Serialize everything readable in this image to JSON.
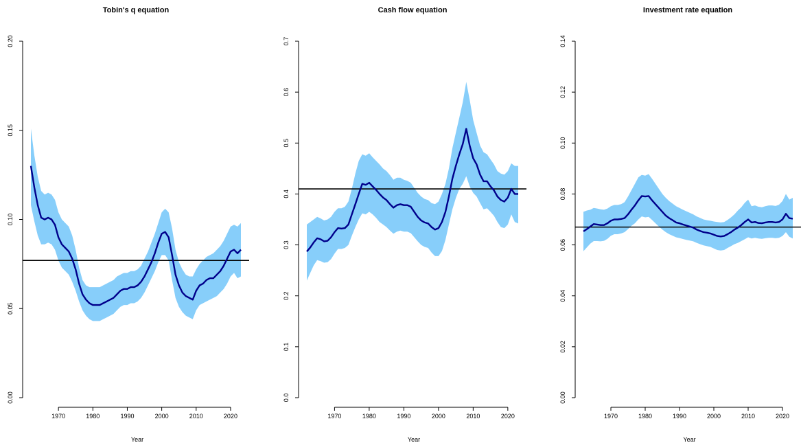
{
  "chart_data": [
    {
      "type": "line",
      "title": "Tobin's q equation",
      "xlabel": "Year",
      "ylabel": "",
      "xlim": [
        1962,
        2023
      ],
      "ylim": [
        0,
        0.2
      ],
      "xticks": [
        "1970",
        "1980",
        "1990",
        "2000",
        "2010",
        "2020"
      ],
      "yticks": [
        "0.00",
        "0.05",
        "0.10",
        "0.15",
        "0.20"
      ],
      "grid": false,
      "band_color": "#87CEFA",
      "line_color": "#00008B",
      "reference_color": "#000000",
      "reference": 0.077,
      "x": [
        1962,
        1963,
        1964,
        1965,
        1966,
        1967,
        1968,
        1969,
        1970,
        1971,
        1972,
        1973,
        1974,
        1975,
        1976,
        1977,
        1978,
        1979,
        1980,
        1981,
        1982,
        1983,
        1984,
        1985,
        1986,
        1987,
        1988,
        1989,
        1990,
        1991,
        1992,
        1993,
        1994,
        1995,
        1996,
        1997,
        1998,
        1999,
        2000,
        2001,
        2002,
        2003,
        2004,
        2005,
        2006,
        2007,
        2008,
        2009,
        2010,
        2011,
        2012,
        2013,
        2014,
        2015,
        2016,
        2017,
        2018,
        2019,
        2020,
        2021,
        2022,
        2023
      ],
      "series": [
        {
          "role": "estimate",
          "values": [
            0.13,
            0.118,
            0.108,
            0.101,
            0.1,
            0.101,
            0.1,
            0.097,
            0.09,
            0.086,
            0.084,
            0.082,
            0.078,
            0.072,
            0.064,
            0.058,
            0.055,
            0.053,
            0.052,
            0.052,
            0.052,
            0.053,
            0.054,
            0.055,
            0.056,
            0.058,
            0.06,
            0.061,
            0.061,
            0.062,
            0.062,
            0.063,
            0.065,
            0.068,
            0.072,
            0.076,
            0.081,
            0.087,
            0.092,
            0.093,
            0.09,
            0.08,
            0.069,
            0.063,
            0.059,
            0.057,
            0.056,
            0.055,
            0.06,
            0.063,
            0.064,
            0.066,
            0.067,
            0.067,
            0.069,
            0.071,
            0.074,
            0.078,
            0.082,
            0.083,
            0.081,
            0.083
          ]
        },
        {
          "role": "upper",
          "values": [
            0.151,
            0.136,
            0.124,
            0.116,
            0.114,
            0.115,
            0.114,
            0.111,
            0.104,
            0.1,
            0.098,
            0.096,
            0.091,
            0.083,
            0.073,
            0.066,
            0.063,
            0.062,
            0.062,
            0.062,
            0.062,
            0.063,
            0.064,
            0.065,
            0.066,
            0.068,
            0.069,
            0.07,
            0.07,
            0.071,
            0.071,
            0.072,
            0.074,
            0.078,
            0.082,
            0.087,
            0.092,
            0.098,
            0.104,
            0.106,
            0.104,
            0.095,
            0.083,
            0.076,
            0.072,
            0.069,
            0.068,
            0.068,
            0.072,
            0.075,
            0.077,
            0.079,
            0.08,
            0.081,
            0.083,
            0.085,
            0.088,
            0.092,
            0.096,
            0.097,
            0.096,
            0.098
          ]
        },
        {
          "role": "lower",
          "values": [
            0.108,
            0.099,
            0.091,
            0.086,
            0.086,
            0.087,
            0.086,
            0.083,
            0.077,
            0.073,
            0.071,
            0.069,
            0.065,
            0.06,
            0.054,
            0.049,
            0.046,
            0.044,
            0.043,
            0.043,
            0.043,
            0.044,
            0.045,
            0.046,
            0.047,
            0.049,
            0.051,
            0.052,
            0.052,
            0.053,
            0.053,
            0.054,
            0.056,
            0.059,
            0.063,
            0.067,
            0.071,
            0.076,
            0.08,
            0.08,
            0.077,
            0.066,
            0.056,
            0.051,
            0.048,
            0.046,
            0.045,
            0.044,
            0.049,
            0.052,
            0.053,
            0.054,
            0.055,
            0.056,
            0.057,
            0.059,
            0.061,
            0.064,
            0.068,
            0.07,
            0.067,
            0.068
          ]
        }
      ]
    },
    {
      "type": "line",
      "title": "Cash flow equation",
      "xlabel": "Year",
      "ylabel": "",
      "xlim": [
        1962,
        2023
      ],
      "ylim": [
        0,
        0.7
      ],
      "xticks": [
        "1970",
        "1980",
        "1990",
        "2000",
        "2010",
        "2020"
      ],
      "yticks": [
        "0.0",
        "0.1",
        "0.2",
        "0.3",
        "0.4",
        "0.5",
        "0.6",
        "0.7"
      ],
      "grid": false,
      "band_color": "#87CEFA",
      "line_color": "#00008B",
      "reference_color": "#000000",
      "reference": 0.41,
      "x": [
        1962,
        1963,
        1964,
        1965,
        1966,
        1967,
        1968,
        1969,
        1970,
        1971,
        1972,
        1973,
        1974,
        1975,
        1976,
        1977,
        1978,
        1979,
        1980,
        1981,
        1982,
        1983,
        1984,
        1985,
        1986,
        1987,
        1988,
        1989,
        1990,
        1991,
        1992,
        1993,
        1994,
        1995,
        1996,
        1997,
        1998,
        1999,
        2000,
        2001,
        2002,
        2003,
        2004,
        2005,
        2006,
        2007,
        2008,
        2009,
        2010,
        2011,
        2012,
        2013,
        2014,
        2015,
        2016,
        2017,
        2018,
        2019,
        2020,
        2021,
        2022,
        2023
      ],
      "series": [
        {
          "role": "estimate",
          "values": [
            0.287,
            0.295,
            0.305,
            0.313,
            0.311,
            0.307,
            0.308,
            0.315,
            0.325,
            0.333,
            0.332,
            0.333,
            0.34,
            0.36,
            0.38,
            0.4,
            0.42,
            0.418,
            0.422,
            0.415,
            0.408,
            0.4,
            0.393,
            0.388,
            0.38,
            0.373,
            0.378,
            0.38,
            0.378,
            0.378,
            0.375,
            0.365,
            0.355,
            0.348,
            0.344,
            0.342,
            0.335,
            0.33,
            0.333,
            0.345,
            0.365,
            0.395,
            0.43,
            0.455,
            0.478,
            0.498,
            0.528,
            0.495,
            0.47,
            0.458,
            0.438,
            0.425,
            0.425,
            0.415,
            0.407,
            0.395,
            0.388,
            0.385,
            0.393,
            0.41,
            0.4,
            0.4
          ]
        },
        {
          "role": "upper",
          "values": [
            0.34,
            0.345,
            0.35,
            0.355,
            0.352,
            0.348,
            0.35,
            0.355,
            0.365,
            0.372,
            0.372,
            0.375,
            0.385,
            0.41,
            0.44,
            0.465,
            0.478,
            0.475,
            0.48,
            0.472,
            0.465,
            0.458,
            0.45,
            0.445,
            0.437,
            0.428,
            0.432,
            0.432,
            0.428,
            0.426,
            0.422,
            0.412,
            0.402,
            0.395,
            0.39,
            0.388,
            0.382,
            0.38,
            0.385,
            0.4,
            0.42,
            0.45,
            0.49,
            0.52,
            0.55,
            0.58,
            0.62,
            0.585,
            0.545,
            0.52,
            0.495,
            0.482,
            0.478,
            0.468,
            0.458,
            0.445,
            0.44,
            0.438,
            0.445,
            0.46,
            0.455,
            0.455
          ]
        },
        {
          "role": "lower",
          "values": [
            0.23,
            0.245,
            0.26,
            0.27,
            0.268,
            0.265,
            0.266,
            0.272,
            0.283,
            0.292,
            0.292,
            0.294,
            0.3,
            0.318,
            0.335,
            0.35,
            0.362,
            0.36,
            0.365,
            0.36,
            0.353,
            0.345,
            0.34,
            0.335,
            0.328,
            0.322,
            0.326,
            0.328,
            0.326,
            0.326,
            0.323,
            0.315,
            0.307,
            0.3,
            0.296,
            0.294,
            0.285,
            0.278,
            0.278,
            0.288,
            0.31,
            0.34,
            0.37,
            0.392,
            0.41,
            0.42,
            0.435,
            0.415,
            0.402,
            0.395,
            0.382,
            0.37,
            0.372,
            0.365,
            0.357,
            0.345,
            0.335,
            0.333,
            0.34,
            0.36,
            0.345,
            0.342
          ]
        }
      ]
    },
    {
      "type": "line",
      "title": "Investment rate equation",
      "xlabel": "Year",
      "ylabel": "",
      "xlim": [
        1962,
        2023
      ],
      "ylim": [
        0,
        0.14
      ],
      "xticks": [
        "1970",
        "1980",
        "1990",
        "2000",
        "2010",
        "2020"
      ],
      "yticks": [
        "0.00",
        "0.02",
        "0.04",
        "0.06",
        "0.08",
        "0.10",
        "0.12",
        "0.14"
      ],
      "grid": false,
      "band_color": "#87CEFA",
      "line_color": "#00008B",
      "reference_color": "#000000",
      "reference": 0.067,
      "x": [
        1962,
        1963,
        1964,
        1965,
        1966,
        1967,
        1968,
        1969,
        1970,
        1971,
        1972,
        1973,
        1974,
        1975,
        1976,
        1977,
        1978,
        1979,
        1980,
        1981,
        1982,
        1983,
        1984,
        1985,
        1986,
        1987,
        1988,
        1989,
        1990,
        1991,
        1992,
        1993,
        1994,
        1995,
        1996,
        1997,
        1998,
        1999,
        2000,
        2001,
        2002,
        2003,
        2004,
        2005,
        2006,
        2007,
        2008,
        2009,
        2010,
        2011,
        2012,
        2013,
        2014,
        2015,
        2016,
        2017,
        2018,
        2019,
        2020,
        2021,
        2022,
        2023
      ],
      "series": [
        {
          "role": "estimate",
          "values": [
            0.0653,
            0.0662,
            0.0672,
            0.0682,
            0.068,
            0.0678,
            0.0678,
            0.0685,
            0.0695,
            0.07,
            0.07,
            0.0702,
            0.0705,
            0.072,
            0.0738,
            0.0755,
            0.0775,
            0.0792,
            0.079,
            0.0792,
            0.0775,
            0.076,
            0.0745,
            0.073,
            0.0715,
            0.0705,
            0.0697,
            0.0688,
            0.0685,
            0.068,
            0.0676,
            0.0672,
            0.0668,
            0.066,
            0.0655,
            0.065,
            0.0648,
            0.0645,
            0.064,
            0.0635,
            0.0633,
            0.0635,
            0.0642,
            0.065,
            0.066,
            0.0668,
            0.0678,
            0.069,
            0.07,
            0.0688,
            0.069,
            0.0686,
            0.0685,
            0.0688,
            0.069,
            0.069,
            0.0688,
            0.069,
            0.07,
            0.0722,
            0.0705,
            0.0703
          ]
        },
        {
          "role": "upper",
          "values": [
            0.073,
            0.0735,
            0.0738,
            0.0745,
            0.0743,
            0.074,
            0.0738,
            0.0743,
            0.0752,
            0.0757,
            0.0757,
            0.076,
            0.0768,
            0.079,
            0.0815,
            0.084,
            0.0865,
            0.0875,
            0.0872,
            0.0878,
            0.086,
            0.084,
            0.082,
            0.08,
            0.0785,
            0.0772,
            0.0762,
            0.0752,
            0.0745,
            0.0738,
            0.0732,
            0.0726,
            0.072,
            0.0712,
            0.0706,
            0.07,
            0.0697,
            0.0695,
            0.0692,
            0.069,
            0.0688,
            0.069,
            0.0698,
            0.0708,
            0.072,
            0.0735,
            0.0748,
            0.0765,
            0.0778,
            0.0752,
            0.0755,
            0.075,
            0.0748,
            0.0752,
            0.0755,
            0.0755,
            0.0753,
            0.0758,
            0.0772,
            0.08,
            0.0778,
            0.0785
          ]
        },
        {
          "role": "lower",
          "values": [
            0.0575,
            0.059,
            0.0605,
            0.0615,
            0.0615,
            0.0614,
            0.0616,
            0.0624,
            0.0636,
            0.0642,
            0.0642,
            0.0645,
            0.065,
            0.0662,
            0.0675,
            0.0685,
            0.07,
            0.0712,
            0.0708,
            0.071,
            0.0698,
            0.0685,
            0.0672,
            0.066,
            0.065,
            0.0642,
            0.0636,
            0.063,
            0.0627,
            0.0623,
            0.062,
            0.0617,
            0.0614,
            0.0608,
            0.0603,
            0.0598,
            0.0595,
            0.0592,
            0.0586,
            0.058,
            0.0578,
            0.058,
            0.0588,
            0.0595,
            0.0603,
            0.0608,
            0.0615,
            0.0622,
            0.063,
            0.0625,
            0.0628,
            0.0625,
            0.0624,
            0.0626,
            0.0628,
            0.0628,
            0.0626,
            0.0628,
            0.0635,
            0.065,
            0.0632,
            0.0625
          ]
        }
      ]
    }
  ]
}
